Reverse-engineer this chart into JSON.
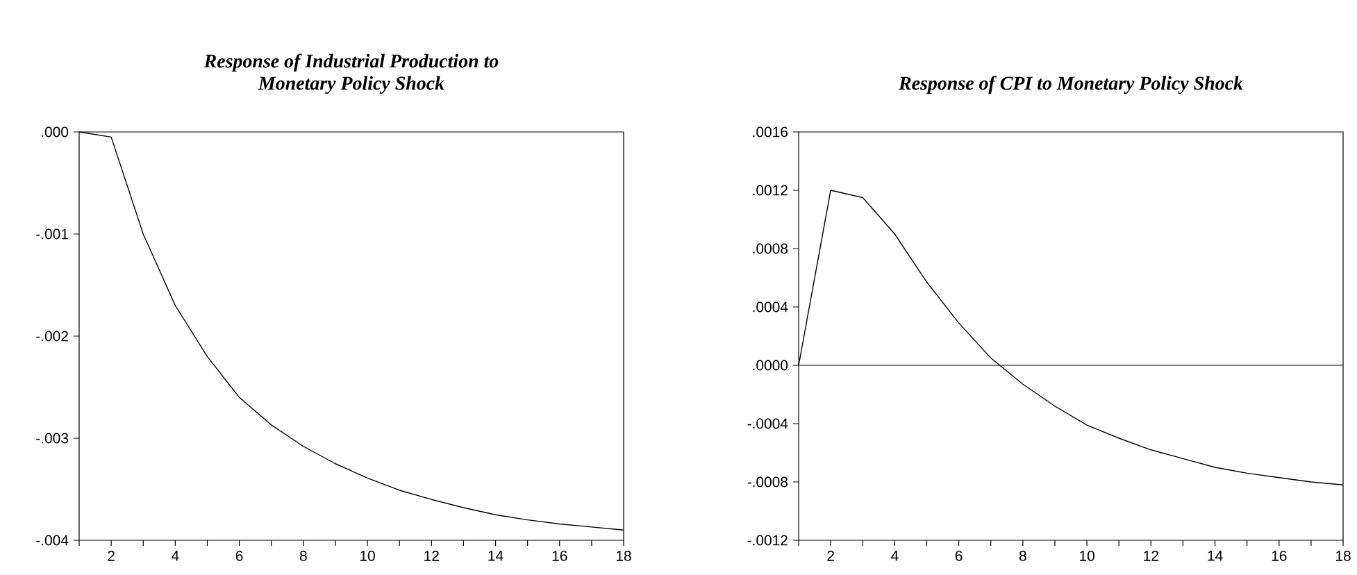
{
  "chart_data": [
    {
      "type": "line",
      "title": "Response of Industrial Production to\nMonetary Policy Shock",
      "x": [
        1,
        2,
        3,
        4,
        5,
        6,
        7,
        8,
        9,
        10,
        11,
        12,
        13,
        14,
        15,
        16,
        17,
        18
      ],
      "series": [
        {
          "color": "#000000",
          "values": [
            0,
            -5e-05,
            -0.001,
            -0.0017,
            -0.0022,
            -0.0026,
            -0.00287,
            -0.00308,
            -0.00325,
            -0.00339,
            -0.00351,
            -0.0036,
            -0.00368,
            -0.00375,
            -0.0038,
            -0.00384,
            -0.00387,
            -0.0039
          ]
        }
      ],
      "xlim": [
        1,
        18
      ],
      "xticks": [
        {
          "value": 1,
          "label": null
        },
        2,
        {
          "value": 3,
          "label": null
        },
        4,
        {
          "value": 5,
          "label": null
        },
        6,
        {
          "value": 7,
          "label": null
        },
        8,
        {
          "value": 9,
          "label": null
        },
        10,
        {
          "value": 11,
          "label": null
        },
        12,
        {
          "value": 13,
          "label": null
        },
        14,
        {
          "value": 15,
          "label": null
        },
        16,
        {
          "value": 17,
          "label": null
        },
        18
      ],
      "ylim": [
        -0.004,
        0
      ],
      "yticks": [
        {
          "value": 0,
          "label": ".000"
        },
        {
          "value": -0.001,
          "label": "-.001"
        },
        {
          "value": -0.002,
          "label": "-.002"
        },
        {
          "value": -0.003,
          "label": "-.003"
        },
        {
          "value": -0.004,
          "label": "-.004"
        }
      ]
    },
    {
      "type": "line",
      "title": "Response of CPI to Monetary Policy Shock",
      "x": [
        1,
        2,
        3,
        4,
        5,
        6,
        7,
        8,
        9,
        10,
        11,
        12,
        13,
        14,
        15,
        16,
        17,
        18
      ],
      "series": [
        {
          "color": "#000000",
          "values": [
            0,
            0.0012,
            0.00115,
            0.0009,
            0.00057,
            0.00029,
            5e-05,
            -0.00013,
            -0.00028,
            -0.00041,
            -0.0005,
            -0.00058,
            -0.00064,
            -0.0007,
            -0.00074,
            -0.00077,
            -0.0008,
            -0.00082
          ]
        }
      ],
      "xlim": [
        1,
        18
      ],
      "xticks": [
        {
          "value": 1,
          "label": null
        },
        2,
        {
          "value": 3,
          "label": null
        },
        4,
        {
          "value": 5,
          "label": null
        },
        6,
        {
          "value": 7,
          "label": null
        },
        8,
        {
          "value": 9,
          "label": null
        },
        10,
        {
          "value": 11,
          "label": null
        },
        12,
        {
          "value": 13,
          "label": null
        },
        14,
        {
          "value": 15,
          "label": null
        },
        16,
        {
          "value": 17,
          "label": null
        },
        18
      ],
      "ylim": [
        -0.0012,
        0.0016
      ],
      "yticks": [
        {
          "value": 0.0016,
          "label": ".0016"
        },
        {
          "value": 0.0012,
          "label": ".0012"
        },
        {
          "value": 0.0008,
          "label": ".0008"
        },
        {
          "value": 0.0004,
          "label": ".0004"
        },
        {
          "value": 0,
          "label": ".0000"
        },
        {
          "value": -0.0004,
          "label": "-.0004"
        },
        {
          "value": -0.0008,
          "label": "-.0008"
        },
        {
          "value": -0.0012,
          "label": "-.0012"
        }
      ],
      "ref_lines": [
        {
          "axis": "y",
          "value": 0,
          "color": "#000000"
        }
      ]
    }
  ]
}
